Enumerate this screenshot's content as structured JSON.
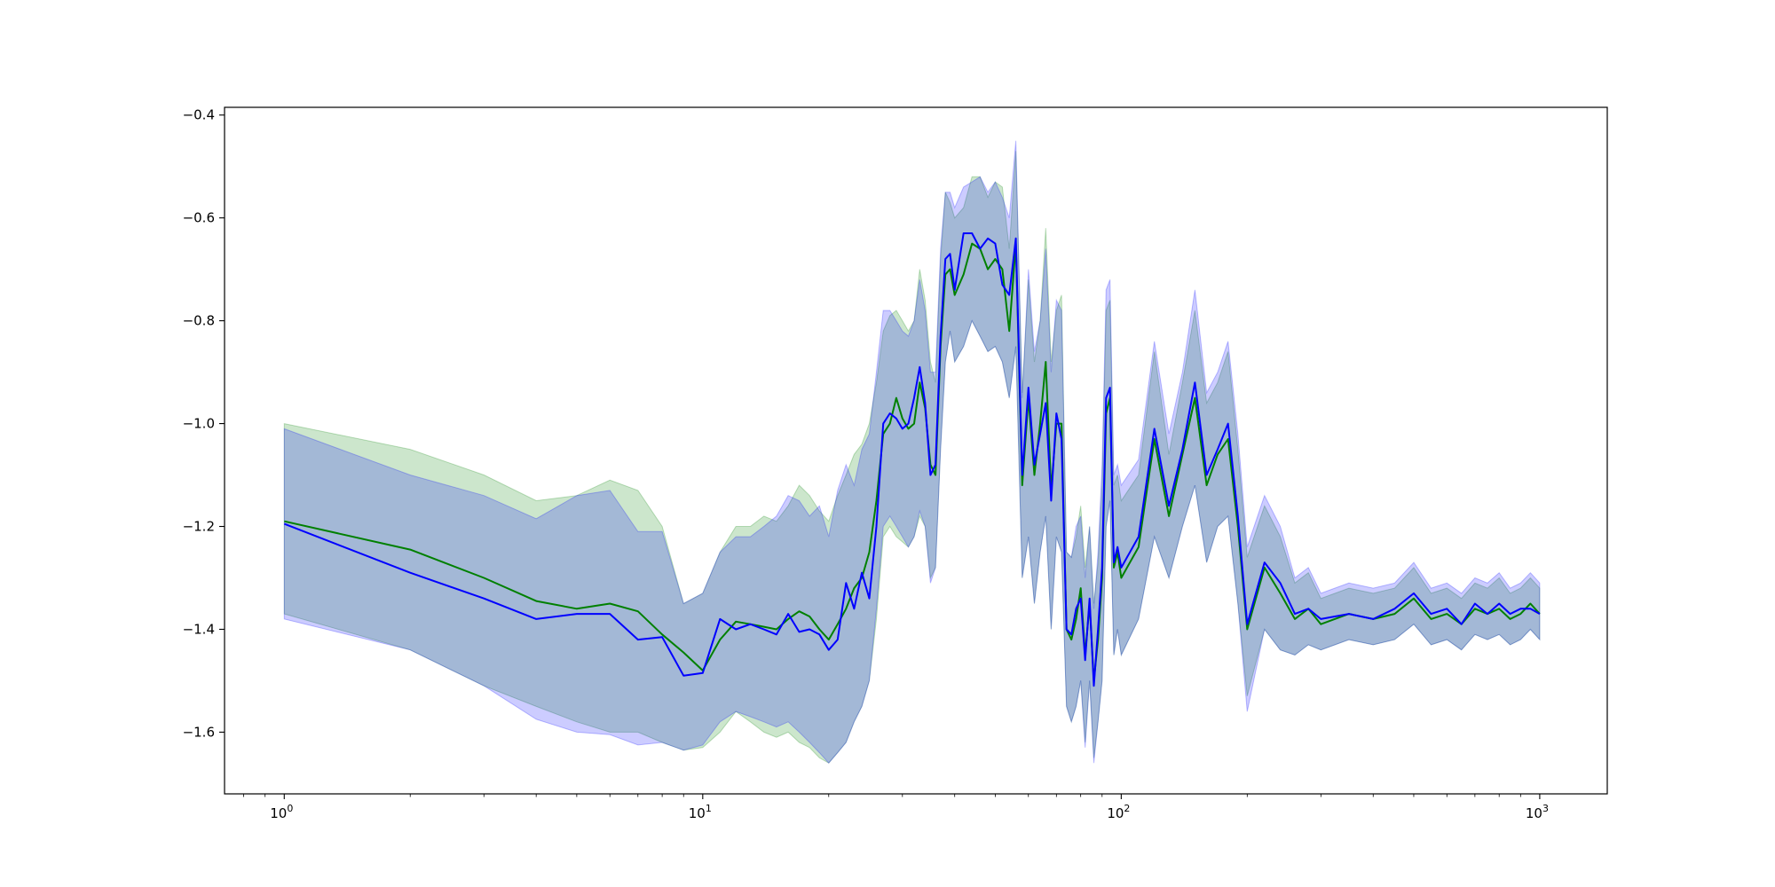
{
  "chart_data": {
    "type": "line",
    "title": "",
    "xlabel": "",
    "ylabel": "",
    "xscale": "log",
    "xlim": [
      0.72,
      1450
    ],
    "ylim": [
      -1.72,
      -0.385
    ],
    "grid": false,
    "legend": "none",
    "x_ticks": [
      {
        "value": 1,
        "base": "10",
        "exp": "0"
      },
      {
        "value": 10,
        "base": "10",
        "exp": "1"
      },
      {
        "value": 100,
        "base": "10",
        "exp": "2"
      },
      {
        "value": 1000,
        "base": "10",
        "exp": "3"
      }
    ],
    "y_ticks": [
      {
        "value": -0.4,
        "label": "−0.4"
      },
      {
        "value": -0.6,
        "label": "−0.6"
      },
      {
        "value": -0.8,
        "label": "−0.8"
      },
      {
        "value": -1.0,
        "label": "−1.0"
      },
      {
        "value": -1.2,
        "label": "−1.2"
      },
      {
        "value": -1.4,
        "label": "−1.4"
      },
      {
        "value": -1.6,
        "label": "−1.6"
      }
    ],
    "series": [
      {
        "color": "#008000",
        "band_color": "#008000",
        "band_opacity": 0.2,
        "x": [
          1,
          2,
          3,
          4,
          5,
          6,
          7,
          8,
          9,
          10,
          11,
          12,
          13,
          14,
          15,
          16,
          17,
          18,
          19,
          20,
          21,
          22,
          23,
          24,
          25,
          26,
          27,
          28,
          29,
          30,
          31,
          32,
          33,
          34,
          35,
          36,
          37,
          38,
          39,
          40,
          42,
          44,
          46,
          48,
          50,
          52,
          54,
          56,
          58,
          60,
          62,
          64,
          66,
          68,
          70,
          72,
          74,
          76,
          78,
          80,
          82,
          84,
          86,
          88,
          90,
          92,
          94,
          96,
          98,
          100,
          110,
          120,
          130,
          140,
          150,
          160,
          170,
          180,
          190,
          200,
          220,
          240,
          260,
          280,
          300,
          350,
          400,
          450,
          500,
          550,
          600,
          650,
          700,
          750,
          800,
          850,
          900,
          950,
          1000
        ],
        "y": [
          -1.19,
          -1.245,
          -1.3,
          -1.345,
          -1.36,
          -1.35,
          -1.365,
          -1.41,
          -1.445,
          -1.48,
          -1.42,
          -1.385,
          -1.39,
          -1.395,
          -1.4,
          -1.38,
          -1.365,
          -1.375,
          -1.4,
          -1.42,
          -1.39,
          -1.36,
          -1.32,
          -1.3,
          -1.25,
          -1.15,
          -1.02,
          -1.0,
          -0.95,
          -0.99,
          -1.01,
          -1.0,
          -0.92,
          -0.97,
          -1.08,
          -1.1,
          -0.85,
          -0.71,
          -0.7,
          -0.75,
          -0.71,
          -0.65,
          -0.66,
          -0.7,
          -0.68,
          -0.7,
          -0.82,
          -0.65,
          -1.12,
          -0.95,
          -1.1,
          -1.0,
          -0.88,
          -1.13,
          -1.0,
          -1.0,
          -1.4,
          -1.42,
          -1.38,
          -1.32,
          -1.45,
          -1.35,
          -1.5,
          -1.42,
          -1.3,
          -0.98,
          -0.95,
          -1.28,
          -1.25,
          -1.3,
          -1.24,
          -1.03,
          -1.18,
          -1.06,
          -0.95,
          -1.12,
          -1.06,
          -1.03,
          -1.2,
          -1.4,
          -1.28,
          -1.33,
          -1.38,
          -1.36,
          -1.39,
          -1.37,
          -1.38,
          -1.37,
          -1.34,
          -1.38,
          -1.37,
          -1.39,
          -1.36,
          -1.37,
          -1.36,
          -1.38,
          -1.37,
          -1.35,
          -1.37
        ],
        "lower": [
          -1.37,
          -1.44,
          -1.51,
          -1.55,
          -1.58,
          -1.6,
          -1.6,
          -1.62,
          -1.635,
          -1.63,
          -1.6,
          -1.56,
          -1.58,
          -1.6,
          -1.61,
          -1.6,
          -1.62,
          -1.63,
          -1.65,
          -1.66,
          -1.64,
          -1.62,
          -1.58,
          -1.55,
          -1.5,
          -1.38,
          -1.22,
          -1.2,
          -1.22,
          -1.23,
          -1.24,
          -1.22,
          -1.18,
          -1.2,
          -1.3,
          -1.28,
          -1.05,
          -0.88,
          -0.82,
          -0.88,
          -0.85,
          -0.8,
          -0.83,
          -0.86,
          -0.85,
          -0.88,
          -0.95,
          -0.85,
          -1.3,
          -1.22,
          -1.35,
          -1.25,
          -1.18,
          -1.4,
          -1.22,
          -1.25,
          -1.55,
          -1.58,
          -1.55,
          -1.5,
          -1.62,
          -1.5,
          -1.65,
          -1.58,
          -1.5,
          -1.2,
          -1.15,
          -1.45,
          -1.4,
          -1.45,
          -1.38,
          -1.22,
          -1.3,
          -1.2,
          -1.12,
          -1.27,
          -1.2,
          -1.18,
          -1.35,
          -1.53,
          -1.4,
          -1.44,
          -1.45,
          -1.43,
          -1.44,
          -1.42,
          -1.43,
          -1.42,
          -1.39,
          -1.43,
          -1.42,
          -1.44,
          -1.41,
          -1.42,
          -1.41,
          -1.43,
          -1.42,
          -1.4,
          -1.42
        ],
        "upper": [
          -1.0,
          -1.05,
          -1.1,
          -1.15,
          -1.14,
          -1.11,
          -1.13,
          -1.2,
          -1.35,
          -1.33,
          -1.25,
          -1.2,
          -1.2,
          -1.18,
          -1.19,
          -1.16,
          -1.12,
          -1.14,
          -1.17,
          -1.19,
          -1.14,
          -1.1,
          -1.06,
          -1.04,
          -1.0,
          -0.92,
          -0.82,
          -0.79,
          -0.78,
          -0.8,
          -0.82,
          -0.8,
          -0.7,
          -0.76,
          -0.88,
          -0.92,
          -0.68,
          -0.55,
          -0.57,
          -0.6,
          -0.58,
          -0.52,
          -0.52,
          -0.56,
          -0.53,
          -0.54,
          -0.66,
          -0.47,
          -0.94,
          -0.72,
          -0.88,
          -0.8,
          -0.62,
          -0.88,
          -0.78,
          -0.75,
          -1.25,
          -1.26,
          -1.22,
          -1.16,
          -1.28,
          -1.2,
          -1.35,
          -1.27,
          -1.12,
          -0.78,
          -0.76,
          -1.12,
          -1.1,
          -1.15,
          -1.1,
          -0.86,
          -1.06,
          -0.92,
          -0.78,
          -0.96,
          -0.92,
          -0.86,
          -1.05,
          -1.26,
          -1.16,
          -1.22,
          -1.31,
          -1.29,
          -1.34,
          -1.32,
          -1.33,
          -1.32,
          -1.28,
          -1.33,
          -1.32,
          -1.34,
          -1.31,
          -1.32,
          -1.3,
          -1.33,
          -1.32,
          -1.3,
          -1.32
        ]
      },
      {
        "color": "#0000ff",
        "band_color": "#0000ff",
        "band_opacity": 0.2,
        "x": [
          1,
          2,
          3,
          4,
          5,
          6,
          7,
          8,
          9,
          10,
          11,
          12,
          13,
          14,
          15,
          16,
          17,
          18,
          19,
          20,
          21,
          22,
          23,
          24,
          25,
          26,
          27,
          28,
          29,
          30,
          31,
          32,
          33,
          34,
          35,
          36,
          37,
          38,
          39,
          40,
          42,
          44,
          46,
          48,
          50,
          52,
          54,
          56,
          58,
          60,
          62,
          64,
          66,
          68,
          70,
          72,
          74,
          76,
          78,
          80,
          82,
          84,
          86,
          88,
          90,
          92,
          94,
          96,
          98,
          100,
          110,
          120,
          130,
          140,
          150,
          160,
          170,
          180,
          190,
          200,
          220,
          240,
          260,
          280,
          300,
          350,
          400,
          450,
          500,
          550,
          600,
          650,
          700,
          750,
          800,
          850,
          900,
          950,
          1000
        ],
        "y": [
          -1.195,
          -1.29,
          -1.34,
          -1.38,
          -1.37,
          -1.37,
          -1.42,
          -1.415,
          -1.49,
          -1.485,
          -1.38,
          -1.4,
          -1.39,
          -1.4,
          -1.41,
          -1.37,
          -1.405,
          -1.4,
          -1.41,
          -1.44,
          -1.42,
          -1.31,
          -1.36,
          -1.29,
          -1.34,
          -1.2,
          -1.0,
          -0.98,
          -0.99,
          -1.01,
          -1.0,
          -0.95,
          -0.89,
          -0.96,
          -1.1,
          -1.08,
          -0.83,
          -0.68,
          -0.67,
          -0.74,
          -0.63,
          -0.63,
          -0.66,
          -0.64,
          -0.65,
          -0.73,
          -0.75,
          -0.64,
          -1.1,
          -0.93,
          -1.08,
          -1.02,
          -0.96,
          -1.15,
          -0.98,
          -1.03,
          -1.4,
          -1.41,
          -1.36,
          -1.34,
          -1.46,
          -1.34,
          -1.51,
          -1.4,
          -1.28,
          -0.95,
          -0.93,
          -1.27,
          -1.24,
          -1.28,
          -1.22,
          -1.01,
          -1.16,
          -1.05,
          -0.92,
          -1.1,
          -1.05,
          -1.0,
          -1.18,
          -1.39,
          -1.27,
          -1.31,
          -1.37,
          -1.36,
          -1.38,
          -1.37,
          -1.38,
          -1.36,
          -1.33,
          -1.37,
          -1.36,
          -1.39,
          -1.35,
          -1.37,
          -1.35,
          -1.37,
          -1.36,
          -1.36,
          -1.37
        ],
        "lower": [
          -1.38,
          -1.44,
          -1.51,
          -1.575,
          -1.6,
          -1.605,
          -1.625,
          -1.62,
          -1.635,
          -1.625,
          -1.58,
          -1.56,
          -1.57,
          -1.58,
          -1.59,
          -1.58,
          -1.6,
          -1.62,
          -1.64,
          -1.66,
          -1.64,
          -1.62,
          -1.58,
          -1.55,
          -1.5,
          -1.36,
          -1.2,
          -1.18,
          -1.2,
          -1.22,
          -1.24,
          -1.22,
          -1.17,
          -1.2,
          -1.31,
          -1.28,
          -1.05,
          -0.88,
          -0.82,
          -0.88,
          -0.85,
          -0.8,
          -0.83,
          -0.86,
          -0.85,
          -0.88,
          -0.95,
          -0.85,
          -1.3,
          -1.22,
          -1.35,
          -1.25,
          -1.18,
          -1.4,
          -1.22,
          -1.25,
          -1.55,
          -1.58,
          -1.55,
          -1.5,
          -1.63,
          -1.5,
          -1.66,
          -1.58,
          -1.5,
          -1.2,
          -1.15,
          -1.45,
          -1.4,
          -1.45,
          -1.38,
          -1.22,
          -1.3,
          -1.2,
          -1.12,
          -1.27,
          -1.2,
          -1.18,
          -1.35,
          -1.56,
          -1.4,
          -1.44,
          -1.45,
          -1.43,
          -1.44,
          -1.42,
          -1.43,
          -1.42,
          -1.39,
          -1.43,
          -1.42,
          -1.44,
          -1.41,
          -1.42,
          -1.41,
          -1.43,
          -1.42,
          -1.4,
          -1.42
        ],
        "upper": [
          -1.01,
          -1.1,
          -1.14,
          -1.185,
          -1.14,
          -1.13,
          -1.21,
          -1.21,
          -1.35,
          -1.33,
          -1.25,
          -1.22,
          -1.22,
          -1.2,
          -1.18,
          -1.14,
          -1.15,
          -1.18,
          -1.16,
          -1.22,
          -1.13,
          -1.08,
          -1.12,
          -1.05,
          -1.02,
          -0.9,
          -0.78,
          -0.78,
          -0.8,
          -0.82,
          -0.83,
          -0.8,
          -0.72,
          -0.78,
          -0.9,
          -0.9,
          -0.66,
          -0.55,
          -0.55,
          -0.58,
          -0.54,
          -0.53,
          -0.52,
          -0.55,
          -0.53,
          -0.56,
          -0.6,
          -0.45,
          -0.95,
          -0.7,
          -0.86,
          -0.8,
          -0.66,
          -0.9,
          -0.76,
          -0.78,
          -1.25,
          -1.26,
          -1.2,
          -1.18,
          -1.3,
          -1.2,
          -1.36,
          -1.25,
          -1.08,
          -0.74,
          -0.72,
          -1.1,
          -1.08,
          -1.12,
          -1.07,
          -0.84,
          -1.02,
          -0.9,
          -0.74,
          -0.94,
          -0.9,
          -0.84,
          -1.02,
          -1.24,
          -1.14,
          -1.2,
          -1.3,
          -1.28,
          -1.33,
          -1.31,
          -1.32,
          -1.31,
          -1.27,
          -1.32,
          -1.31,
          -1.33,
          -1.3,
          -1.31,
          -1.29,
          -1.32,
          -1.31,
          -1.29,
          -1.31
        ]
      }
    ]
  }
}
